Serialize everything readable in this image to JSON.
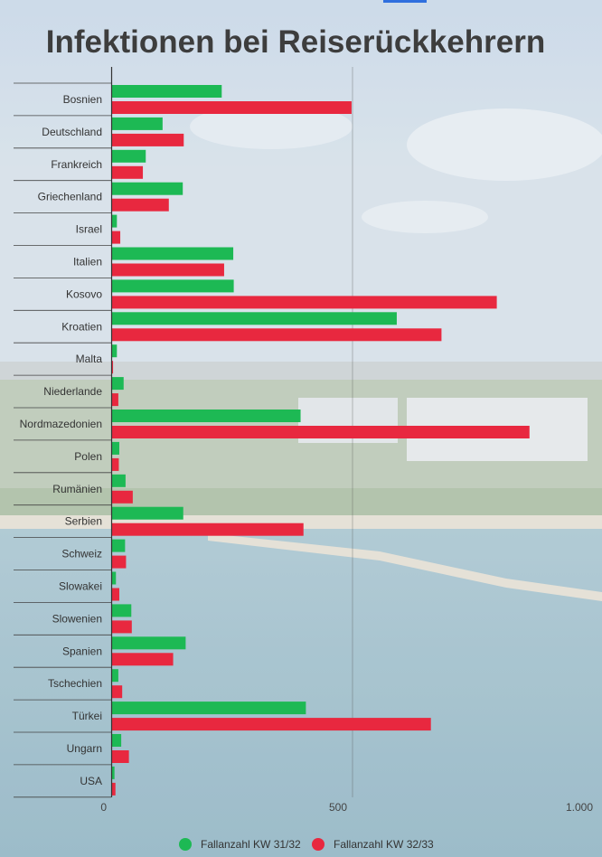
{
  "colors": {
    "series1": "#1db954",
    "series2": "#e8283f",
    "title": "#3d3d3d"
  },
  "chart_data": {
    "type": "bar",
    "orientation": "horizontal",
    "title": "Infektionen bei Reiserückkehrern",
    "xlabel": "",
    "ylabel": "",
    "xlim": [
      0,
      1000
    ],
    "x_ticks": [
      "0",
      "500",
      "1.000"
    ],
    "grid": "vertical line at 500",
    "legend_position": "bottom",
    "categories": [
      "Bosnien",
      "Deutschland",
      "Frankreich",
      "Griechenland",
      "Israel",
      "Italien",
      "Kosovo",
      "Kroatien",
      "Malta",
      "Niederlande",
      "Nordmazedonien",
      "Polen",
      "Rumänien",
      "Serbien",
      "Schweiz",
      "Slowakei",
      "Slowenien",
      "Spanien",
      "Tschechien",
      "Türkei",
      "Ungarn",
      "USA"
    ],
    "series": [
      {
        "name": "Fallanzahl KW 31/32",
        "color": "#1db954",
        "values": [
          228,
          105,
          70,
          147,
          10,
          252,
          253,
          592,
          10,
          24,
          392,
          15,
          28,
          148,
          27,
          8,
          40,
          153,
          13,
          403,
          19,
          5
        ]
      },
      {
        "name": "Fallanzahl KW 32/33",
        "color": "#e8283f",
        "values": [
          498,
          149,
          64,
          118,
          17,
          233,
          800,
          685,
          2,
          13,
          868,
          14,
          43,
          398,
          29,
          15,
          41,
          127,
          21,
          663,
          35,
          7
        ]
      }
    ]
  }
}
